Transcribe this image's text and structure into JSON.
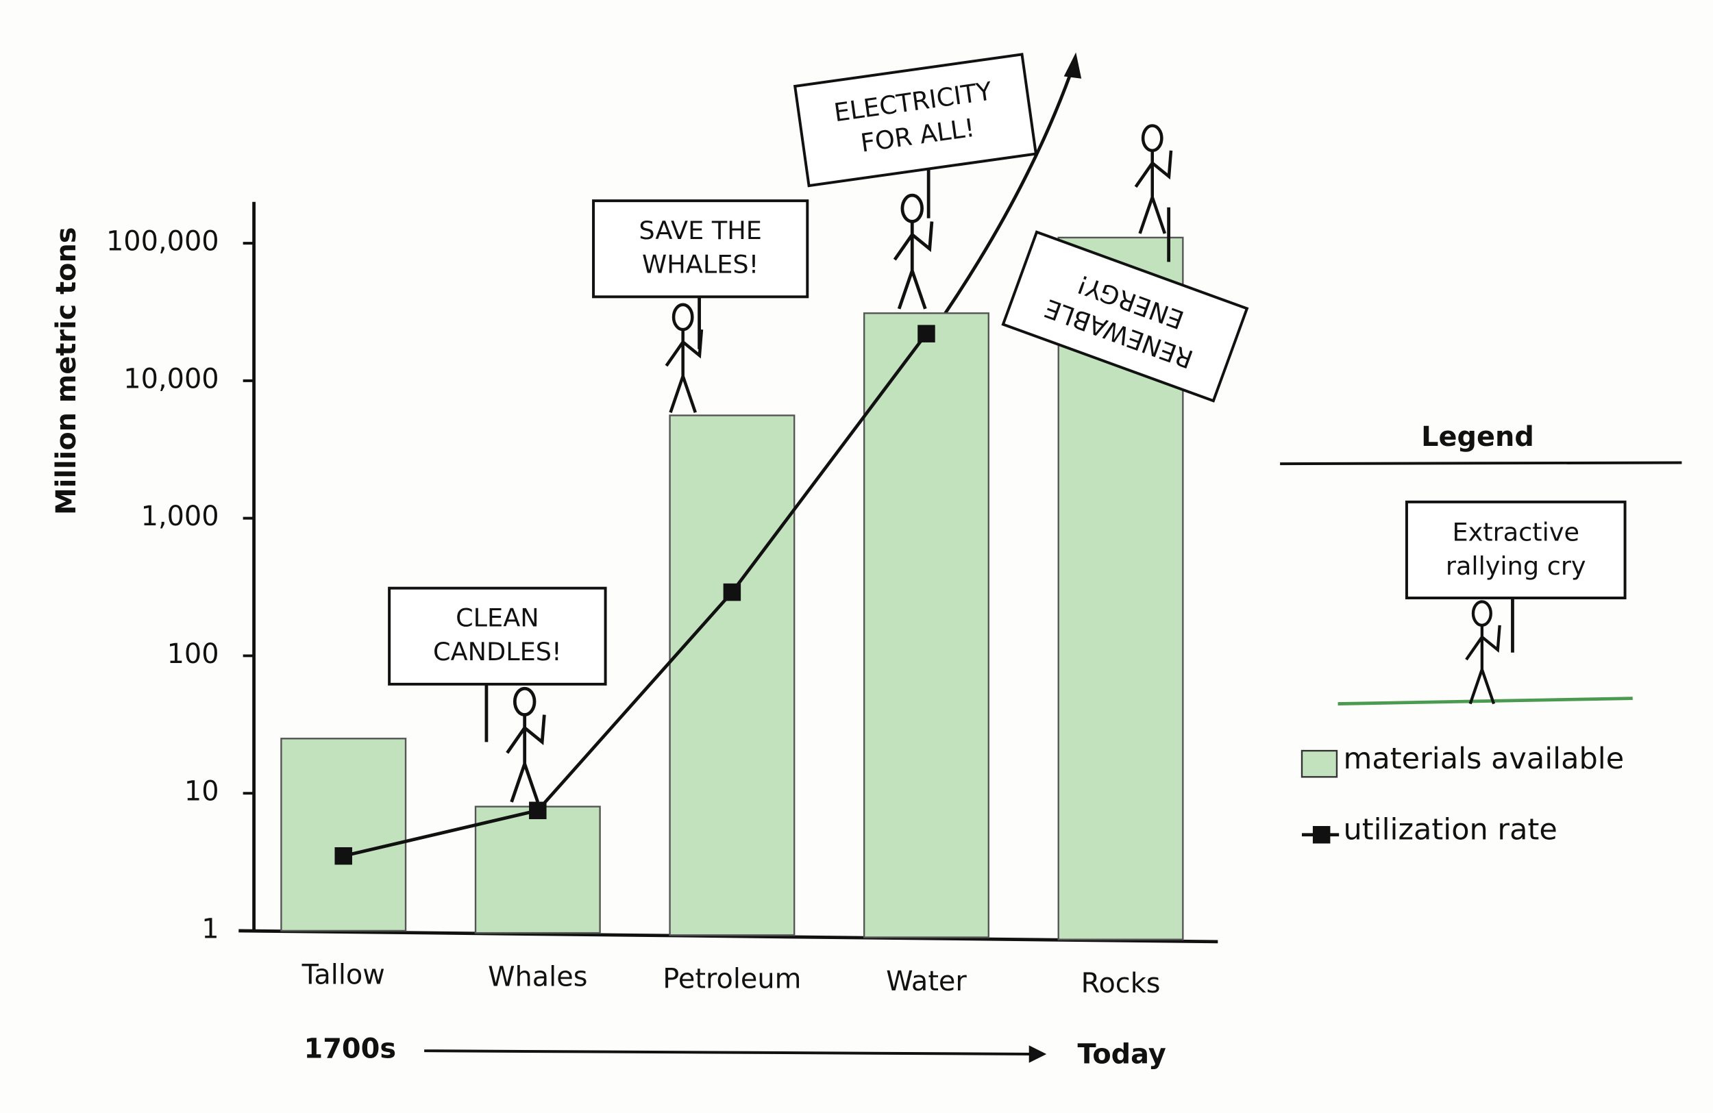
{
  "chart_data": {
    "type": "bar",
    "y_label": "Million metric tons",
    "categories": [
      "Tallow",
      "Whales",
      "Petroleum",
      "Water",
      "Rocks"
    ],
    "series": [
      {
        "name": "materials available",
        "type": "bar",
        "color": "#c2e2bd",
        "values": [
          25,
          8,
          5600,
          31000,
          110000
        ]
      },
      {
        "name": "utilization rate",
        "type": "line",
        "color": "#111111",
        "values": [
          3.5,
          7.5,
          290,
          22000,
          null
        ]
      }
    ],
    "log_scale": true,
    "ylim": [
      1,
      200000
    ],
    "yticks": [
      1,
      10,
      100,
      {
        "value": 1000,
        "label": "1,000"
      },
      {
        "value": 10000,
        "label": "10,000"
      },
      {
        "value": 100000,
        "label": "100,000"
      }
    ],
    "annotations": [
      {
        "lines": [
          "CLEAN",
          "CANDLES!"
        ]
      },
      {
        "lines": [
          "SAVE THE",
          "WHALES!"
        ]
      },
      {
        "lines": [
          "ELECTRICITY",
          "FOR ALL!"
        ]
      },
      {
        "lines": [
          "RENEWABLE",
          "ENERGY!"
        ]
      }
    ],
    "timeline": {
      "start": "1700s",
      "end": "Today"
    },
    "legend": {
      "title": "Legend",
      "sign": [
        "Extractive",
        "rallying cry"
      ]
    }
  }
}
